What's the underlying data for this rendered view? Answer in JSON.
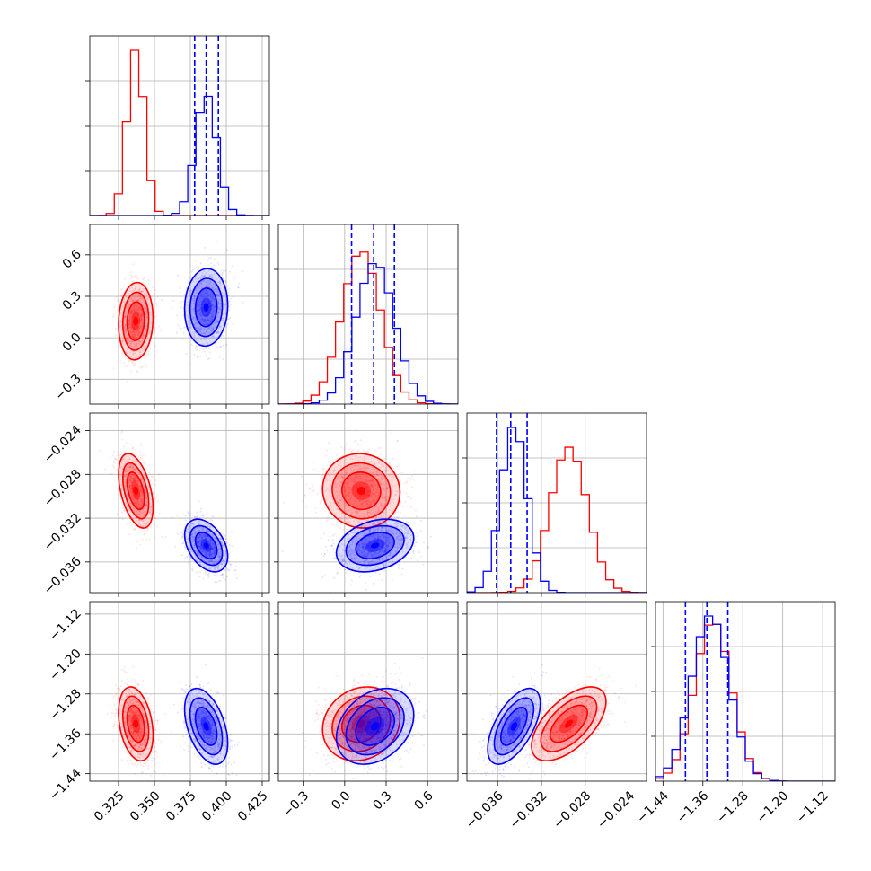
{
  "chart_data": {
    "type": "corner",
    "grid": true,
    "colors": {
      "primary": "#ff0000",
      "secondary": "#0000ff"
    },
    "parameters": [
      {
        "range": [
          0.305,
          0.43
        ],
        "ticks": [
          "0.325",
          "0.350",
          "0.375",
          "0.400",
          "0.425"
        ],
        "tick_values": [
          0.325,
          0.35,
          0.375,
          0.4,
          0.425
        ]
      },
      {
        "range": [
          -0.48,
          0.82
        ],
        "ticks": [
          "−0.3",
          "0.0",
          "0.3",
          "0.6"
        ],
        "tick_values": [
          -0.3,
          0.0,
          0.3,
          0.6
        ]
      },
      {
        "range": [
          -0.0388,
          -0.0224
        ],
        "ticks": [
          "−0.036",
          "−0.032",
          "−0.028",
          "−0.024"
        ],
        "tick_values": [
          -0.036,
          -0.032,
          -0.028,
          -0.024
        ]
      },
      {
        "range": [
          -1.455,
          -1.095
        ],
        "ticks": [
          "−1.44",
          "−1.36",
          "−1.28",
          "−1.20",
          "−1.12"
        ],
        "tick_values": [
          -1.44,
          -1.36,
          -1.28,
          -1.2,
          -1.12
        ]
      }
    ],
    "series": [
      {
        "color": "#ff0000",
        "means": [
          0.337,
          0.12,
          -0.0295,
          -1.34
        ],
        "sigmas": [
          0.006,
          0.14,
          0.0017,
          0.037
        ],
        "correlations": [
          [
            0,
            1,
            0.08
          ],
          [
            0,
            2,
            -0.45
          ],
          [
            0,
            3,
            -0.3
          ],
          [
            1,
            2,
            -0.05
          ],
          [
            1,
            3,
            0.15
          ],
          [
            2,
            3,
            0.6
          ]
        ],
        "hist_scale": [
          1.0,
          0.92,
          0.88,
          0.95
        ]
      },
      {
        "color": "#0000ff",
        "means": [
          0.386,
          0.22,
          -0.0345,
          -1.345
        ],
        "sigmas": [
          0.0075,
          0.14,
          0.0012,
          0.038
        ],
        "correlations": [
          [
            0,
            1,
            0.05
          ],
          [
            0,
            2,
            -0.4
          ],
          [
            0,
            3,
            -0.45
          ],
          [
            1,
            2,
            0.28
          ],
          [
            1,
            3,
            0.3
          ],
          [
            2,
            3,
            0.6
          ]
        ],
        "hist_scale": [
          0.72,
          0.85,
          1.0,
          1.0
        ],
        "quantiles": [
          [
            0.378,
            0.386,
            0.3945
          ],
          [
            0.05,
            0.21,
            0.36
          ],
          [
            -0.0361,
            -0.0348,
            -0.0333
          ],
          [
            -1.395,
            -1.352,
            -1.31
          ]
        ]
      }
    ]
  }
}
